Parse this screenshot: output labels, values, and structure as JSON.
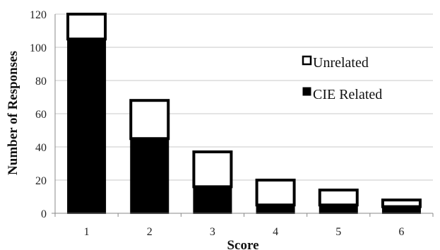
{
  "chart_data": {
    "type": "bar",
    "stacked": true,
    "categories": [
      "1",
      "2",
      "3",
      "4",
      "5",
      "6"
    ],
    "series": [
      {
        "name": "CIE Related",
        "values": [
          105,
          45,
          16,
          5,
          5,
          4
        ],
        "color": "#000000"
      },
      {
        "name": "Unrelated",
        "values": [
          15,
          23,
          21,
          15,
          9,
          4
        ],
        "color": "#ffffff"
      }
    ],
    "totals": [
      120,
      68,
      37,
      20,
      14,
      8
    ],
    "xlabel": "Score",
    "ylabel": "Number of Responses",
    "ylim": [
      0,
      120
    ],
    "yticks": [
      0,
      20,
      40,
      60,
      80,
      100,
      120
    ],
    "grid": true,
    "legend_position": "right",
    "legend": [
      {
        "label": "Unrelated",
        "swatch": "white"
      },
      {
        "label": "CIE Related",
        "swatch": "black"
      }
    ]
  }
}
